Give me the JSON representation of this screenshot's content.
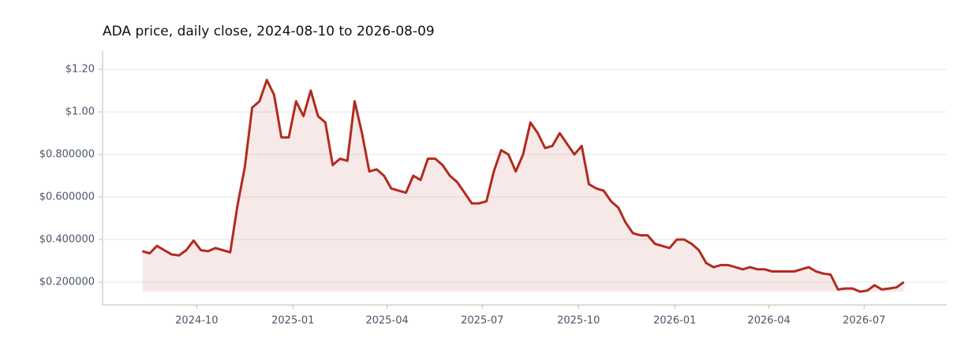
{
  "chart_data": {
    "type": "line",
    "title": "ADA price, daily close, 2024-08-10 to 2026-08-09",
    "x": [
      "2024-08-10",
      "2024-08-17",
      "2024-08-24",
      "2024-08-31",
      "2024-09-07",
      "2024-09-14",
      "2024-09-21",
      "2024-09-28",
      "2024-10-05",
      "2024-10-12",
      "2024-10-19",
      "2024-10-26",
      "2024-11-02",
      "2024-11-09",
      "2024-11-16",
      "2024-11-23",
      "2024-11-30",
      "2024-12-07",
      "2024-12-14",
      "2024-12-21",
      "2024-12-28",
      "2025-01-04",
      "2025-01-11",
      "2025-01-18",
      "2025-01-25",
      "2025-02-01",
      "2025-02-08",
      "2025-02-15",
      "2025-02-22",
      "2025-03-01",
      "2025-03-08",
      "2025-03-15",
      "2025-03-22",
      "2025-03-29",
      "2025-04-05",
      "2025-04-12",
      "2025-04-19",
      "2025-04-26",
      "2025-05-03",
      "2025-05-10",
      "2025-05-17",
      "2025-05-24",
      "2025-05-31",
      "2025-06-07",
      "2025-06-14",
      "2025-06-21",
      "2025-06-28",
      "2025-07-05",
      "2025-07-12",
      "2025-07-19",
      "2025-07-26",
      "2025-08-02",
      "2025-08-09",
      "2025-08-16",
      "2025-08-23",
      "2025-08-30",
      "2025-09-06",
      "2025-09-13",
      "2025-09-20",
      "2025-09-27",
      "2025-10-04",
      "2025-10-11",
      "2025-10-18",
      "2025-10-25",
      "2025-11-01",
      "2025-11-08",
      "2025-11-15",
      "2025-11-22",
      "2025-11-29",
      "2025-12-06",
      "2025-12-13",
      "2025-12-20",
      "2025-12-27",
      "2026-01-03",
      "2026-01-10",
      "2026-01-17",
      "2026-01-24",
      "2026-01-31",
      "2026-02-07",
      "2026-02-14",
      "2026-02-21",
      "2026-02-28",
      "2026-03-07",
      "2026-03-14",
      "2026-03-21",
      "2026-03-28",
      "2026-04-04",
      "2026-04-11",
      "2026-04-18",
      "2026-04-25",
      "2026-05-02",
      "2026-05-09",
      "2026-05-16",
      "2026-05-23",
      "2026-05-30",
      "2026-06-06",
      "2026-06-13",
      "2026-06-20",
      "2026-06-27",
      "2026-07-04",
      "2026-07-11",
      "2026-07-18",
      "2026-07-25",
      "2026-08-01",
      "2026-08-08"
    ],
    "series": [
      {
        "name": "ADA",
        "color": "#b22a1e",
        "values": [
          0.345,
          0.335,
          0.37,
          0.35,
          0.33,
          0.325,
          0.35,
          0.395,
          0.35,
          0.345,
          0.36,
          0.35,
          0.34,
          0.56,
          0.74,
          1.02,
          1.05,
          1.15,
          1.08,
          0.88,
          0.88,
          1.05,
          0.98,
          1.1,
          0.98,
          0.95,
          0.75,
          0.78,
          0.77,
          1.05,
          0.9,
          0.72,
          0.73,
          0.7,
          0.64,
          0.63,
          0.62,
          0.7,
          0.68,
          0.78,
          0.78,
          0.75,
          0.7,
          0.67,
          0.62,
          0.57,
          0.57,
          0.58,
          0.72,
          0.82,
          0.8,
          0.72,
          0.8,
          0.95,
          0.9,
          0.83,
          0.84,
          0.9,
          0.85,
          0.8,
          0.84,
          0.66,
          0.64,
          0.63,
          0.58,
          0.55,
          0.48,
          0.43,
          0.42,
          0.42,
          0.38,
          0.37,
          0.36,
          0.4,
          0.4,
          0.38,
          0.35,
          0.29,
          0.27,
          0.28,
          0.28,
          0.27,
          0.26,
          0.27,
          0.26,
          0.26,
          0.25,
          0.25,
          0.25,
          0.25,
          0.26,
          0.27,
          0.25,
          0.24,
          0.235,
          0.165,
          0.17,
          0.17,
          0.155,
          0.16,
          0.185,
          0.165,
          0.17,
          0.175,
          0.2
        ]
      }
    ],
    "xlim": [
      "2024-07-03",
      "2026-09-18"
    ],
    "xticks": [
      {
        "value": "2024-10-01",
        "label": "2024-10"
      },
      {
        "value": "2025-01-01",
        "label": "2025-01"
      },
      {
        "value": "2025-04-01",
        "label": "2025-04"
      },
      {
        "value": "2025-07-01",
        "label": "2025-07"
      },
      {
        "value": "2025-10-01",
        "label": "2025-10"
      },
      {
        "value": "2026-01-01",
        "label": "2026-01"
      },
      {
        "value": "2026-04-01",
        "label": "2026-04"
      },
      {
        "value": "2026-07-01",
        "label": "2026-07"
      }
    ],
    "ylim": [
      0.0926,
      1.285
    ],
    "yticks": [
      {
        "value": 0.2,
        "label": "$0.200000"
      },
      {
        "value": 0.4,
        "label": "$0.400000"
      },
      {
        "value": 0.6,
        "label": "$0.600000"
      },
      {
        "value": 0.8,
        "label": "$0.800000"
      },
      {
        "value": 1.0,
        "label": "$1.00"
      },
      {
        "value": 1.2,
        "label": "$1.20"
      }
    ],
    "grid": true
  }
}
